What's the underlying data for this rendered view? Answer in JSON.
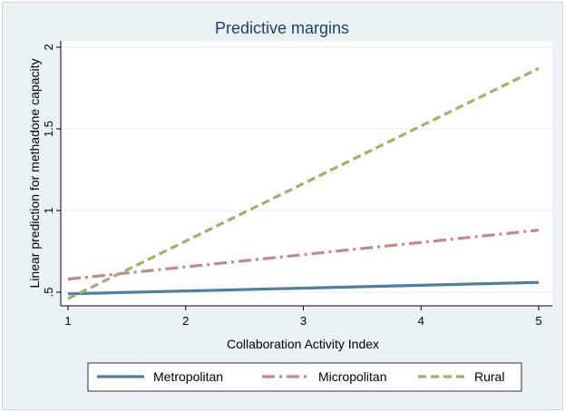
{
  "chart_data": {
    "type": "line",
    "title": "Predictive margins",
    "xlabel": "Collaboration Activity Index",
    "ylabel": "Linear prediction for methadone capacity",
    "xlim": [
      1,
      5
    ],
    "ylim": [
      0.45,
      2.0
    ],
    "x_ticks": [
      1,
      2,
      3,
      4,
      5
    ],
    "x_tick_labels": [
      "1",
      "2",
      "3",
      "4",
      "5"
    ],
    "y_ticks": [
      0.5,
      1,
      1.5,
      2
    ],
    "y_tick_labels": [
      ".5",
      "1",
      "1.5",
      "2"
    ],
    "grid": "horizontal",
    "legend_position": "bottom",
    "x": [
      1,
      5
    ],
    "series": [
      {
        "name": "Metropolitan",
        "values": [
          0.49,
          0.56
        ],
        "color": "#4e7ea1",
        "style": "solid"
      },
      {
        "name": "Micropolitan",
        "values": [
          0.58,
          0.88
        ],
        "color": "#c1898a",
        "style": "dash-dot"
      },
      {
        "name": "Rural",
        "values": [
          0.46,
          1.87
        ],
        "color": "#9db36a",
        "style": "dash"
      }
    ]
  }
}
